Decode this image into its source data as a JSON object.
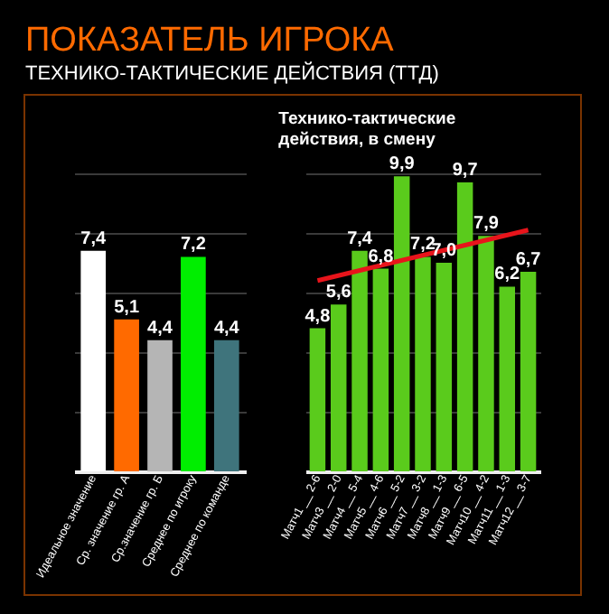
{
  "chart_data": [
    {
      "type": "bar",
      "title": "ПОКАЗАТЕЛЬ ИГРОКА",
      "subtitle": "ТЕХНИКО-ТАКТИЧЕСКИЕ ДЕЙСТВИЯ (ТТД)",
      "categories": [
        "Идеальное значение",
        "Ср. значение гр. А",
        "Ср.значение гр. Б",
        "Среднее по игроку",
        "Среднее по команде"
      ],
      "values": [
        7.4,
        5.1,
        4.4,
        7.2,
        4.4
      ],
      "colors": [
        "#ffffff",
        "#ff6a00",
        "#b5b5b5",
        "#00ee00",
        "#3f747c"
      ],
      "value_labels": [
        "7,4",
        "5,1",
        "4,4",
        "7,2",
        "4,4"
      ],
      "ylim": [
        0,
        10
      ],
      "yticks": [
        {
          "value": 0,
          "label": null
        },
        {
          "value": 2,
          "label": null
        },
        {
          "value": 4,
          "label": null
        },
        {
          "value": 6,
          "label": null
        },
        {
          "value": 8,
          "label": null
        },
        {
          "value": 10,
          "label": null
        }
      ],
      "grid": "y",
      "tick_labels": "x"
    },
    {
      "type": "bar",
      "title": "Технико-тактические действия, в смену",
      "categories": [
        "Матч1 __ 2-6",
        "Матч3 __ 2-0",
        "Матч4 __ 5-4",
        "Матч5 __ 4-6",
        "Матч6 __ 5-2",
        "Матч7 __ 3-2",
        "Матч8 __ 1-3",
        "Матч9 __ 6-5",
        "Матч10 __ 4-2",
        "Матч11 __ 1-3",
        "Матч12 __ 3-7"
      ],
      "series": [
        {
          "type": "bar",
          "color": "#5acb1c",
          "values": [
            4.8,
            5.6,
            7.4,
            6.8,
            9.9,
            7.2,
            7.0,
            9.7,
            7.9,
            6.2,
            6.7
          ],
          "value_labels": [
            "4,8",
            "5,6",
            "7,4",
            "6,8",
            "9,9",
            "7,2",
            "7,0",
            "9,7",
            "7,9",
            "6,2",
            "6,7"
          ]
        },
        {
          "type": "line",
          "color": "#e8141b",
          "x": [
            "Матч1 __ 2-6",
            "Матч12 __ 3-7"
          ],
          "values": [
            6.4,
            8.1
          ]
        }
      ],
      "ylim": [
        0,
        10
      ],
      "yticks": [
        {
          "value": 0,
          "label": null
        },
        {
          "value": 2,
          "label": null
        },
        {
          "value": 4,
          "label": null
        },
        {
          "value": 6,
          "label": null
        },
        {
          "value": 8,
          "label": null
        },
        {
          "value": 10,
          "label": null
        }
      ],
      "grid": "y",
      "tick_labels": "x"
    }
  ]
}
